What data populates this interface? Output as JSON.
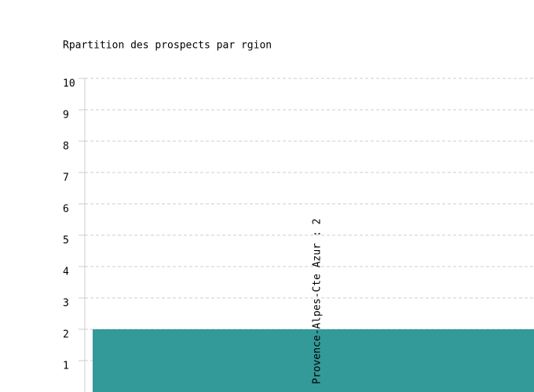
{
  "chart_data": {
    "type": "bar",
    "title": "Rpartition des prospects par rgion",
    "values": [
      2
    ],
    "value_labels": [
      "Provence-Alpes-Cte Azur : 2"
    ],
    "color": "#339999",
    "ylim": [
      0,
      10
    ],
    "yticks": [
      1,
      2,
      3,
      4,
      5,
      6,
      7,
      8,
      9,
      10
    ],
    "grid": true
  }
}
